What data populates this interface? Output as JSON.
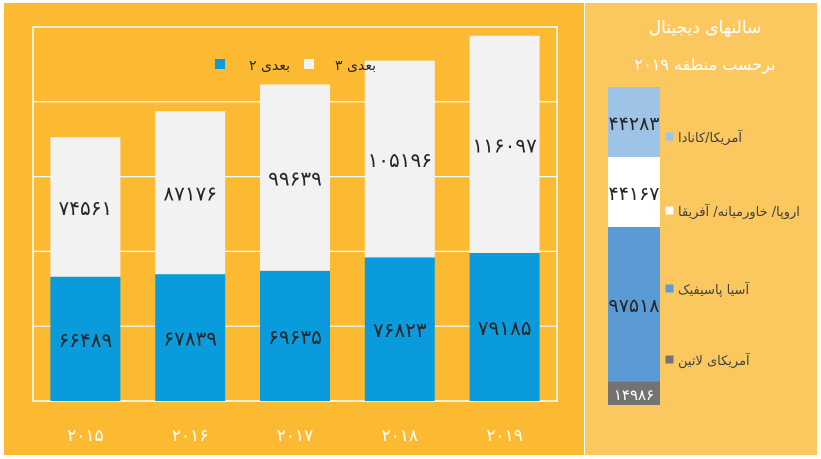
{
  "chart_data": [
    {
      "type": "bar",
      "stacked": true,
      "categories": [
        "۲۰۱۵",
        "۲۰۱۶",
        "۲۰۱۷",
        "۲۰۱۸",
        "۲۰۱۹"
      ],
      "series": [
        {
          "name": "۲ بعدی",
          "color": "#0A9BDD",
          "values": [
            66489,
            67839,
            69635,
            76823,
            79185
          ],
          "labels": [
            "۶۶۴۸۹",
            "۶۷۸۳۹",
            "۶۹۶۳۵",
            "۷۶۸۲۳",
            "۷۹۱۸۵"
          ]
        },
        {
          "name": "۳ بعدی",
          "color": "#F2F2F2",
          "values": [
            74561,
            87176,
            99639,
            105196,
            116097
          ],
          "labels": [
            "۷۴۵۶۱",
            "۸۷۱۷۶",
            "۹۹۶۳۹",
            "۱۰۵۱۹۶",
            "۱۱۶۰۹۷"
          ]
        }
      ],
      "ylim": [
        0,
        200000
      ],
      "grid": true,
      "legend_position": "top"
    },
    {
      "type": "bar",
      "stacked": true,
      "title": "سالنهای دیجیتال",
      "subtitle": "برحسب منطقه ۲۰۱۹",
      "categories": [
        "2019"
      ],
      "series": [
        {
          "name": "آمریکای لاتین",
          "color": "#737373",
          "values": [
            14986
          ],
          "label": "۱۴۹۸۶"
        },
        {
          "name": "آسیا پاسیفیک",
          "color": "#5B9BD5",
          "values": [
            97518
          ],
          "label": "۹۷۵۱۸"
        },
        {
          "name": "اروپا/ خاورمیانه/ آفریقا",
          "color": "#FFFFFF",
          "values": [
            44167
          ],
          "label": "۴۴۱۶۷"
        },
        {
          "name": "آمریکا/کانادا",
          "color": "#9DC3E6",
          "values": [
            44283
          ],
          "label": "۴۴۲۸۳"
        }
      ],
      "legend_position": "right"
    }
  ]
}
